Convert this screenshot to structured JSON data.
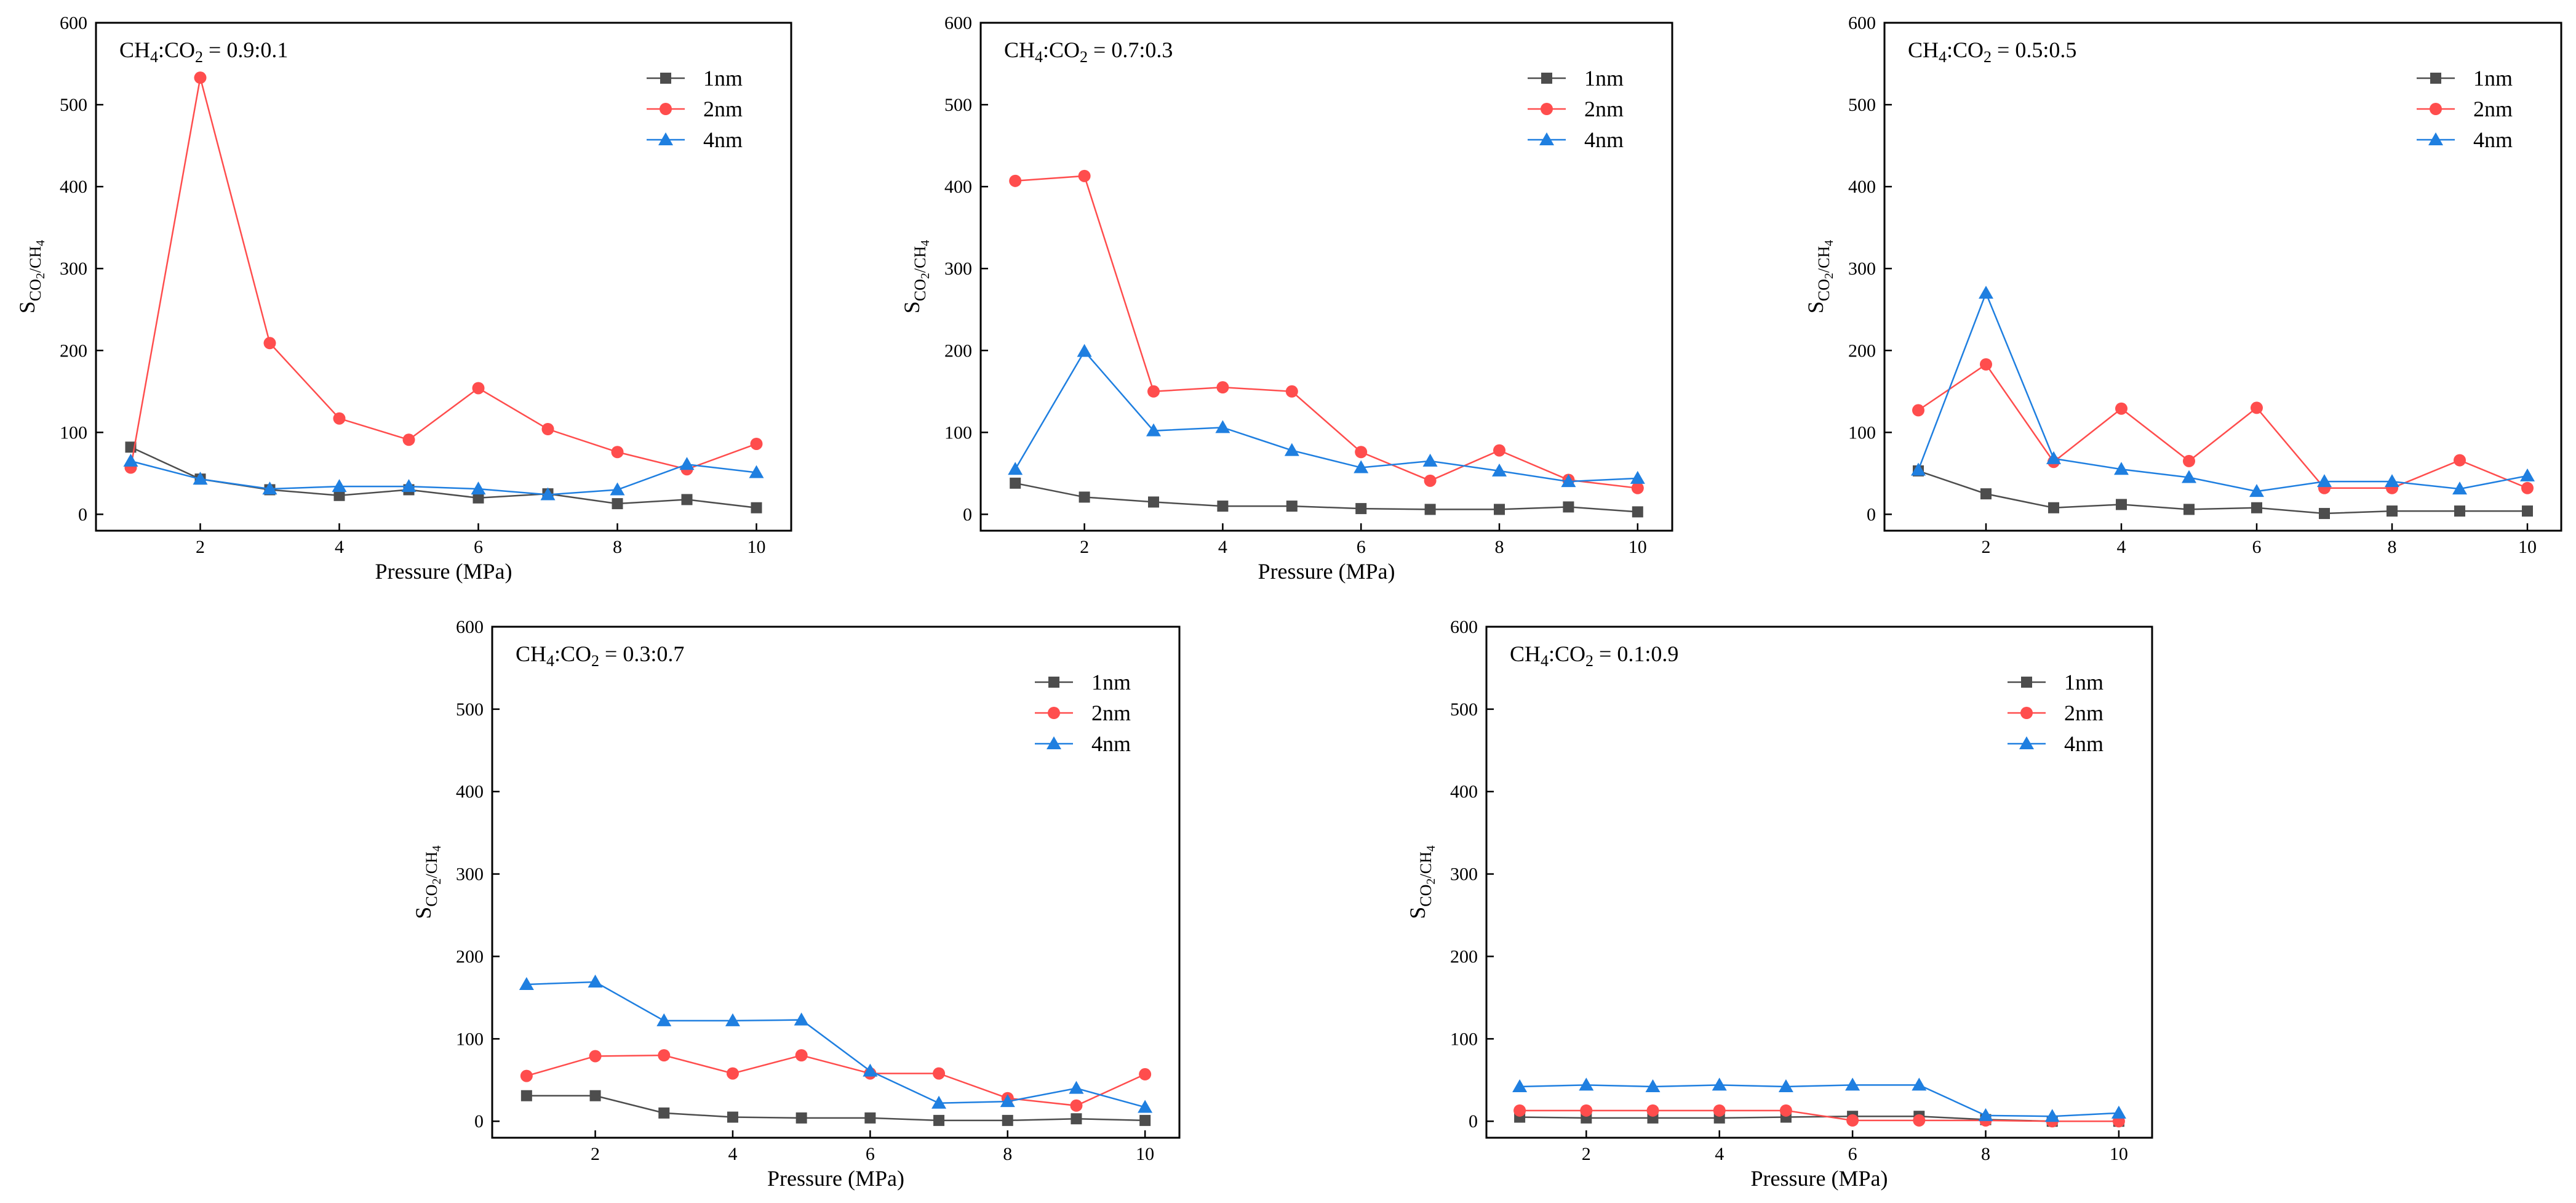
{
  "figure": {
    "x_axis_title": "Pressure (MPa)",
    "y_axis_title": {
      "main": "S",
      "sub1": "CO",
      "sub2": "2",
      "sub3": "/CH",
      "sub4": "4"
    },
    "legend": [
      "1nm",
      "2nm",
      "4nm"
    ],
    "colors": {
      "1nm": "#4d4d4d",
      "2nm": "#ff4d4d",
      "4nm": "#1f7fe0"
    }
  },
  "chart_data": [
    {
      "type": "line",
      "title": "CH4:CO2 = 0.9:0.1",
      "title_parts": {
        "a": "CH",
        "a_sub": "4",
        "b": ":CO",
        "b_sub": "2",
        "c": " = 0.9:0.1"
      },
      "xlabel": "Pressure (MPa)",
      "ylabel": "S CO2/CH4",
      "x": [
        1,
        2,
        3,
        4,
        5,
        6,
        7,
        8,
        9,
        10
      ],
      "xlim": [
        0.5,
        10.5
      ],
      "ylim": [
        -20,
        600
      ],
      "xticks": [
        2,
        4,
        6,
        8,
        10
      ],
      "yticks": [
        0,
        100,
        200,
        300,
        400,
        500,
        600
      ],
      "legend_position": "top-right",
      "series": [
        {
          "name": "1nm",
          "marker": "square",
          "values": [
            82,
            43,
            30,
            23,
            30,
            20,
            25,
            13,
            18,
            8
          ]
        },
        {
          "name": "2nm",
          "marker": "circle",
          "values": [
            57,
            533,
            209,
            117,
            91,
            154,
            104,
            76,
            55,
            86
          ]
        },
        {
          "name": "4nm",
          "marker": "triangle",
          "values": [
            65,
            43,
            31,
            34,
            34,
            31,
            24,
            30,
            61,
            51
          ]
        }
      ]
    },
    {
      "type": "line",
      "title": "CH4:CO2 = 0.7:0.3",
      "title_parts": {
        "a": "CH",
        "a_sub": "4",
        "b": ":CO",
        "b_sub": "2",
        "c": " = 0.7:0.3"
      },
      "xlabel": "Pressure (MPa)",
      "ylabel": "S CO2/CH4",
      "x": [
        1,
        2,
        3,
        4,
        5,
        6,
        7,
        8,
        9,
        10
      ],
      "xlim": [
        0.5,
        10.5
      ],
      "ylim": [
        -20,
        600
      ],
      "xticks": [
        2,
        4,
        6,
        8,
        10
      ],
      "yticks": [
        0,
        100,
        200,
        300,
        400,
        500,
        600
      ],
      "legend_position": "top-right",
      "series": [
        {
          "name": "1nm",
          "marker": "square",
          "values": [
            38,
            21,
            15,
            10,
            10,
            7,
            6,
            6,
            9,
            3
          ]
        },
        {
          "name": "2nm",
          "marker": "circle",
          "values": [
            407,
            413,
            150,
            155,
            150,
            76,
            41,
            78,
            42,
            32
          ]
        },
        {
          "name": "4nm",
          "marker": "triangle",
          "values": [
            55,
            199,
            102,
            106,
            78,
            57,
            65,
            53,
            40,
            44
          ]
        }
      ]
    },
    {
      "type": "line",
      "title": "CH4:CO2 = 0.5:0.5",
      "title_parts": {
        "a": "CH",
        "a_sub": "4",
        "b": ":CO",
        "b_sub": "2",
        "c": " = 0.5:0.5"
      },
      "xlabel": "",
      "ylabel": "S CO2/CH4",
      "x": [
        1,
        2,
        3,
        4,
        5,
        6,
        7,
        8,
        9,
        10
      ],
      "xlim": [
        0.5,
        10.5
      ],
      "ylim": [
        -20,
        600
      ],
      "xticks": [
        2,
        4,
        6,
        8,
        10
      ],
      "yticks": [
        0,
        100,
        200,
        300,
        400,
        500,
        600
      ],
      "legend_position": "top-right",
      "series": [
        {
          "name": "1nm",
          "marker": "square",
          "values": [
            53,
            25,
            8,
            12,
            6,
            8,
            1,
            4,
            4,
            4
          ]
        },
        {
          "name": "2nm",
          "marker": "circle",
          "values": [
            127,
            183,
            64,
            129,
            65,
            130,
            32,
            32,
            66,
            32
          ]
        },
        {
          "name": "4nm",
          "marker": "triangle",
          "values": [
            54,
            270,
            68,
            55,
            45,
            28,
            40,
            40,
            31,
            47
          ]
        }
      ]
    },
    {
      "type": "line",
      "title": "CH4:CO2 = 0.3:0.7",
      "title_parts": {
        "a": "CH",
        "a_sub": "4",
        "b": ":CO",
        "b_sub": "2",
        "c": " = 0.3:0.7"
      },
      "xlabel": "Pressure (MPa)",
      "ylabel": "S CO2/CH4",
      "x": [
        1,
        2,
        3,
        4,
        5,
        6,
        7,
        8,
        9,
        10
      ],
      "xlim": [
        0.5,
        10.5
      ],
      "ylim": [
        -20,
        600
      ],
      "xticks": [
        2,
        4,
        6,
        8,
        10
      ],
      "yticks": [
        0,
        100,
        200,
        300,
        400,
        500,
        600
      ],
      "legend_position": "top-right",
      "series": [
        {
          "name": "1nm",
          "marker": "square",
          "values": [
            31,
            31,
            10,
            5,
            4,
            4,
            1,
            1,
            3,
            1
          ]
        },
        {
          "name": "2nm",
          "marker": "circle",
          "values": [
            55,
            79,
            80,
            58,
            80,
            58,
            58,
            28,
            19,
            57
          ]
        },
        {
          "name": "4nm",
          "marker": "triangle",
          "values": [
            166,
            169,
            122,
            122,
            123,
            61,
            22,
            24,
            40,
            17
          ]
        }
      ]
    },
    {
      "type": "line",
      "title": "CH4:CO2 = 0.1:0.9",
      "title_parts": {
        "a": "CH",
        "a_sub": "4",
        "b": ":CO",
        "b_sub": "2",
        "c": " = 0.1:0.9"
      },
      "xlabel": "Pressure (MPa)",
      "ylabel": "S CO2/CH4",
      "x": [
        1,
        2,
        3,
        4,
        5,
        6,
        7,
        8,
        9,
        10
      ],
      "xlim": [
        0.5,
        10.5
      ],
      "ylim": [
        -20,
        600
      ],
      "xticks": [
        2,
        4,
        6,
        8,
        10
      ],
      "yticks": [
        0,
        100,
        200,
        300,
        400,
        500,
        600
      ],
      "legend_position": "top-right",
      "series": [
        {
          "name": "1nm",
          "marker": "square",
          "values": [
            5,
            4,
            4,
            4,
            5,
            6,
            6,
            2,
            0,
            0
          ]
        },
        {
          "name": "2nm",
          "marker": "circle",
          "values": [
            13,
            13,
            13,
            13,
            13,
            1,
            1,
            1,
            0,
            0
          ]
        },
        {
          "name": "4nm",
          "marker": "triangle",
          "values": [
            42,
            44,
            42,
            44,
            42,
            44,
            44,
            7,
            6,
            10
          ]
        }
      ]
    }
  ]
}
